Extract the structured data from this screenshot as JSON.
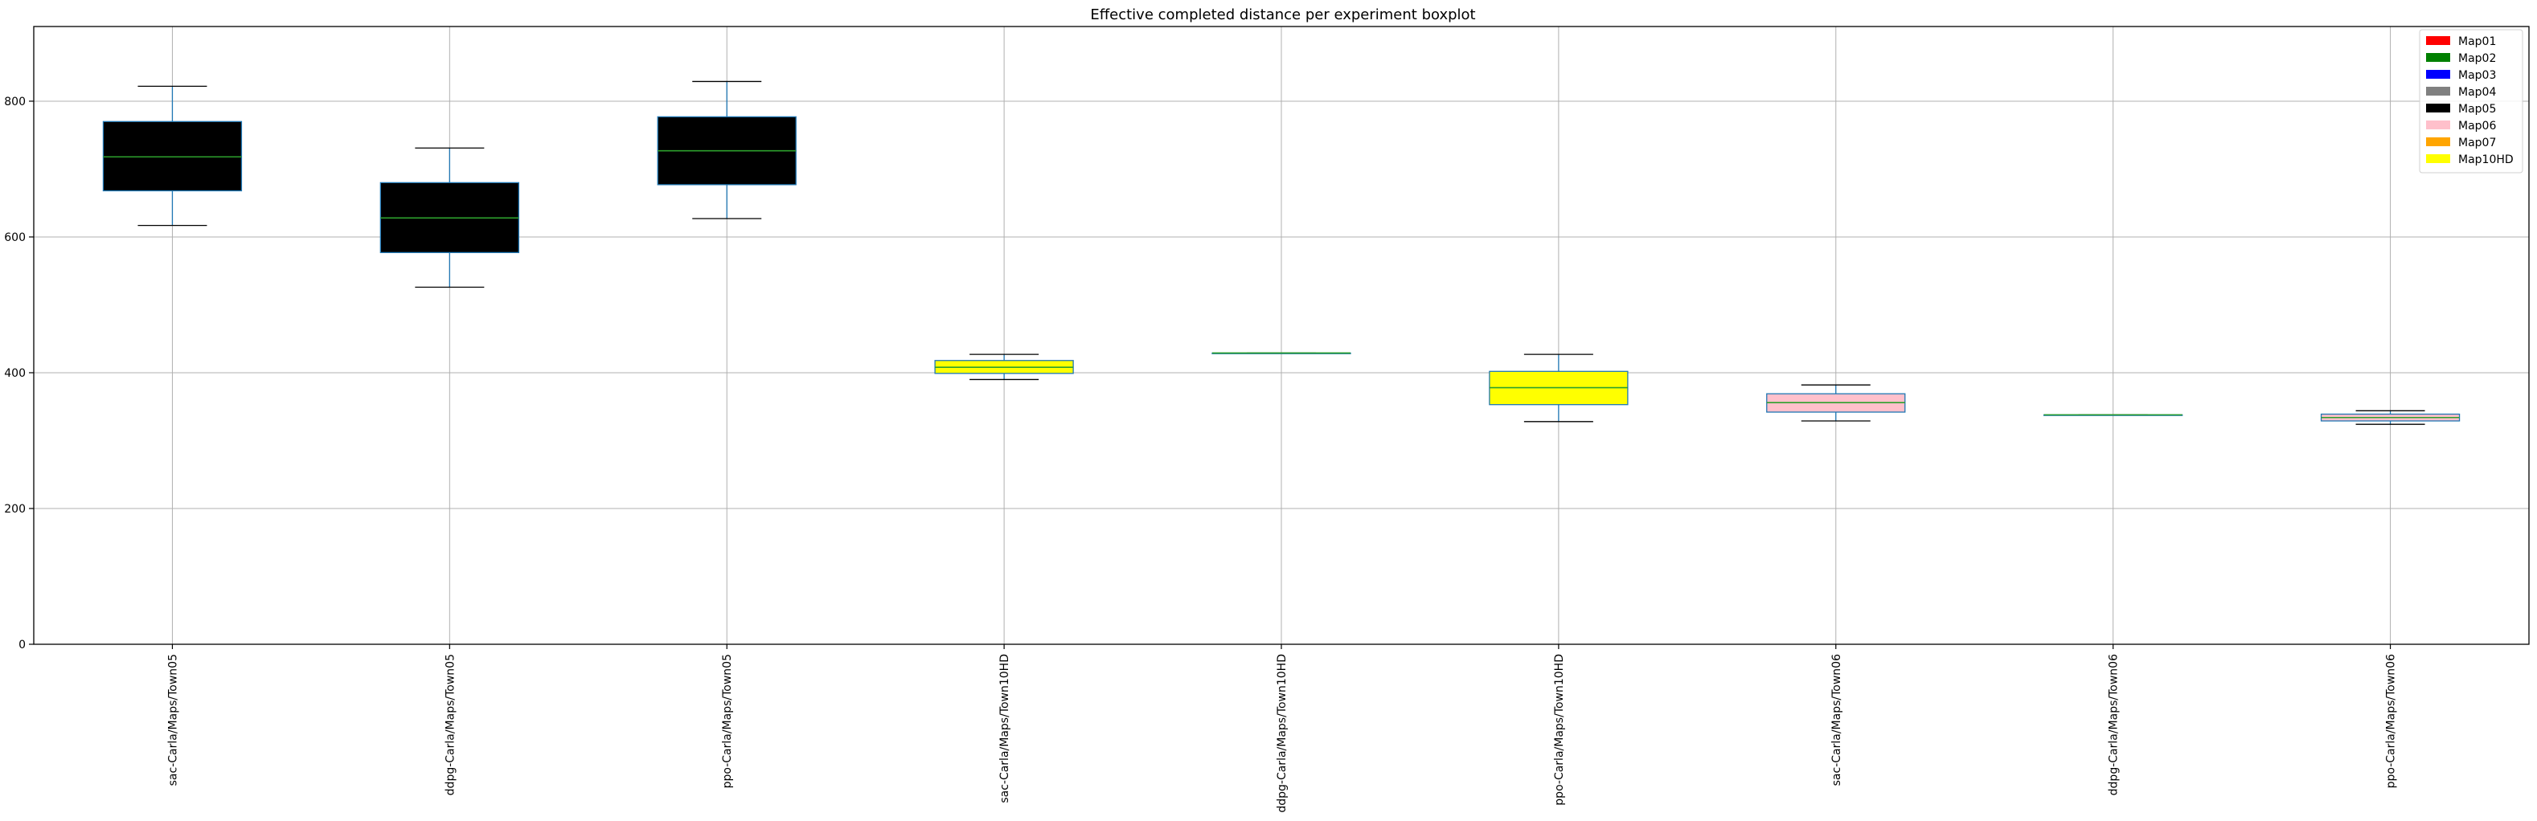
{
  "chart_data": {
    "type": "box",
    "title": "Effective completed distance per experiment boxplot",
    "xlabel": "",
    "ylabel": "",
    "ylim": [
      0,
      910
    ],
    "yticks": [
      0,
      200,
      400,
      600,
      800
    ],
    "grid": true,
    "legend_position": "top-right",
    "categories": [
      "sac-Carla/Maps/Town05",
      "ddpg-Carla/Maps/Town05",
      "ppo-Carla/Maps/Town05",
      "sac-Carla/Maps/Town10HD",
      "ddpg-Carla/Maps/Town10HD",
      "ppo-Carla/Maps/Town10HD",
      "sac-Carla/Maps/Town06",
      "ddpg-Carla/Maps/Town06",
      "ppo-Carla/Maps/Town06"
    ],
    "boxes": [
      {
        "min": 617,
        "q1": 668,
        "median": 718,
        "q3": 770,
        "max": 822,
        "fill": "#000000"
      },
      {
        "min": 526,
        "q1": 577,
        "median": 628,
        "q3": 680,
        "max": 731,
        "fill": "#000000"
      },
      {
        "min": 627,
        "q1": 677,
        "median": 727,
        "q3": 777,
        "max": 829,
        "fill": "#000000"
      },
      {
        "min": 390,
        "q1": 399,
        "median": 408,
        "q3": 418,
        "max": 427,
        "fill": "#ffff00"
      },
      {
        "min": 429,
        "q1": 429,
        "median": 429,
        "q3": 429,
        "max": 429,
        "fill": "#ffff00"
      },
      {
        "min": 328,
        "q1": 353,
        "median": 378,
        "q3": 402,
        "max": 427,
        "fill": "#ffff00"
      },
      {
        "min": 329,
        "q1": 342,
        "median": 356,
        "q3": 369,
        "max": 382,
        "fill": "#ffc0cb"
      },
      {
        "min": 338,
        "q1": 338,
        "median": 338,
        "q3": 338,
        "max": 338,
        "fill": "#ffc0cb"
      },
      {
        "min": 324,
        "q1": 329,
        "median": 334,
        "q3": 339,
        "max": 344,
        "fill": "#ffc0cb"
      }
    ],
    "legend": [
      {
        "label": "Map01",
        "color": "#ff0000"
      },
      {
        "label": "Map02",
        "color": "#008000"
      },
      {
        "label": "Map03",
        "color": "#0000ff"
      },
      {
        "label": "Map04",
        "color": "#808080"
      },
      {
        "label": "Map05",
        "color": "#000000"
      },
      {
        "label": "Map06",
        "color": "#ffc0cb"
      },
      {
        "label": "Map07",
        "color": "#ffa500"
      },
      {
        "label": "Map10HD",
        "color": "#ffff00"
      }
    ],
    "colors": {
      "box_edge": "#1f77b4",
      "median": "#2ca02c",
      "whisker": "#1f77b4",
      "cap": "#000000",
      "grid": "#b0b0b0"
    }
  }
}
